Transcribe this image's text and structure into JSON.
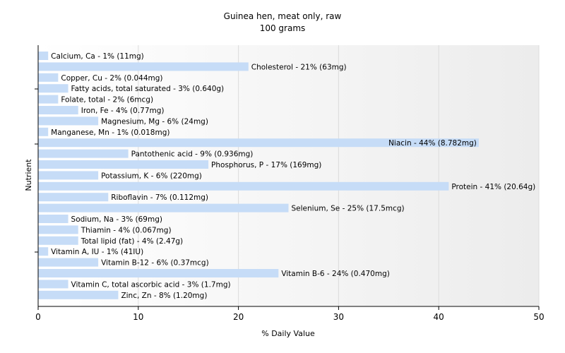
{
  "chart_data": {
    "type": "bar",
    "orientation": "horizontal",
    "title": "Guinea hen, meat only, raw",
    "subtitle": "100 grams",
    "xlabel": "% Daily Value",
    "ylabel": "Nutrient",
    "xlim": [
      0,
      50
    ],
    "xticks": [
      0,
      10,
      20,
      30,
      40,
      50
    ],
    "grid": true,
    "bar_color": "#c6dcf7",
    "bars": [
      {
        "nutrient": "Calcium, Ca",
        "value": 1,
        "label": "Calcium, Ca - 1% (11mg)"
      },
      {
        "nutrient": "Cholesterol",
        "value": 21,
        "label": "Cholesterol - 21% (63mg)"
      },
      {
        "nutrient": "Copper, Cu",
        "value": 2,
        "label": "Copper, Cu - 2% (0.044mg)"
      },
      {
        "nutrient": "Fatty acids, total saturated",
        "value": 3,
        "label": "Fatty acids, total saturated - 3% (0.640g)"
      },
      {
        "nutrient": "Folate, total",
        "value": 2,
        "label": "Folate, total - 2% (6mcg)"
      },
      {
        "nutrient": "Iron, Fe",
        "value": 4,
        "label": "Iron, Fe - 4% (0.77mg)"
      },
      {
        "nutrient": "Magnesium, Mg",
        "value": 6,
        "label": "Magnesium, Mg - 6% (24mg)"
      },
      {
        "nutrient": "Manganese, Mn",
        "value": 1,
        "label": "Manganese, Mn - 1% (0.018mg)"
      },
      {
        "nutrient": "Niacin",
        "value": 44,
        "label": "Niacin - 44% (8.782mg)"
      },
      {
        "nutrient": "Pantothenic acid",
        "value": 9,
        "label": "Pantothenic acid - 9% (0.936mg)"
      },
      {
        "nutrient": "Phosphorus, P",
        "value": 17,
        "label": "Phosphorus, P - 17% (169mg)"
      },
      {
        "nutrient": "Potassium, K",
        "value": 6,
        "label": "Potassium, K - 6% (220mg)"
      },
      {
        "nutrient": "Protein",
        "value": 41,
        "label": "Protein - 41% (20.64g)"
      },
      {
        "nutrient": "Riboflavin",
        "value": 7,
        "label": "Riboflavin - 7% (0.112mg)"
      },
      {
        "nutrient": "Selenium, Se",
        "value": 25,
        "label": "Selenium, Se - 25% (17.5mcg)"
      },
      {
        "nutrient": "Sodium, Na",
        "value": 3,
        "label": "Sodium, Na - 3% (69mg)"
      },
      {
        "nutrient": "Thiamin",
        "value": 4,
        "label": "Thiamin - 4% (0.067mg)"
      },
      {
        "nutrient": "Total lipid (fat)",
        "value": 4,
        "label": "Total lipid (fat) - 4% (2.47g)"
      },
      {
        "nutrient": "Vitamin A, IU",
        "value": 1,
        "label": "Vitamin A, IU - 1% (41IU)"
      },
      {
        "nutrient": "Vitamin B-12",
        "value": 6,
        "label": "Vitamin B-12 - 6% (0.37mcg)"
      },
      {
        "nutrient": "Vitamin B-6",
        "value": 24,
        "label": "Vitamin B-6 - 24% (0.470mg)"
      },
      {
        "nutrient": "Vitamin C, total ascorbic acid",
        "value": 3,
        "label": "Vitamin C, total ascorbic acid - 3% (1.7mg)"
      },
      {
        "nutrient": "Zinc, Zn",
        "value": 8,
        "label": "Zinc, Zn - 8% (1.20mg)"
      }
    ]
  }
}
